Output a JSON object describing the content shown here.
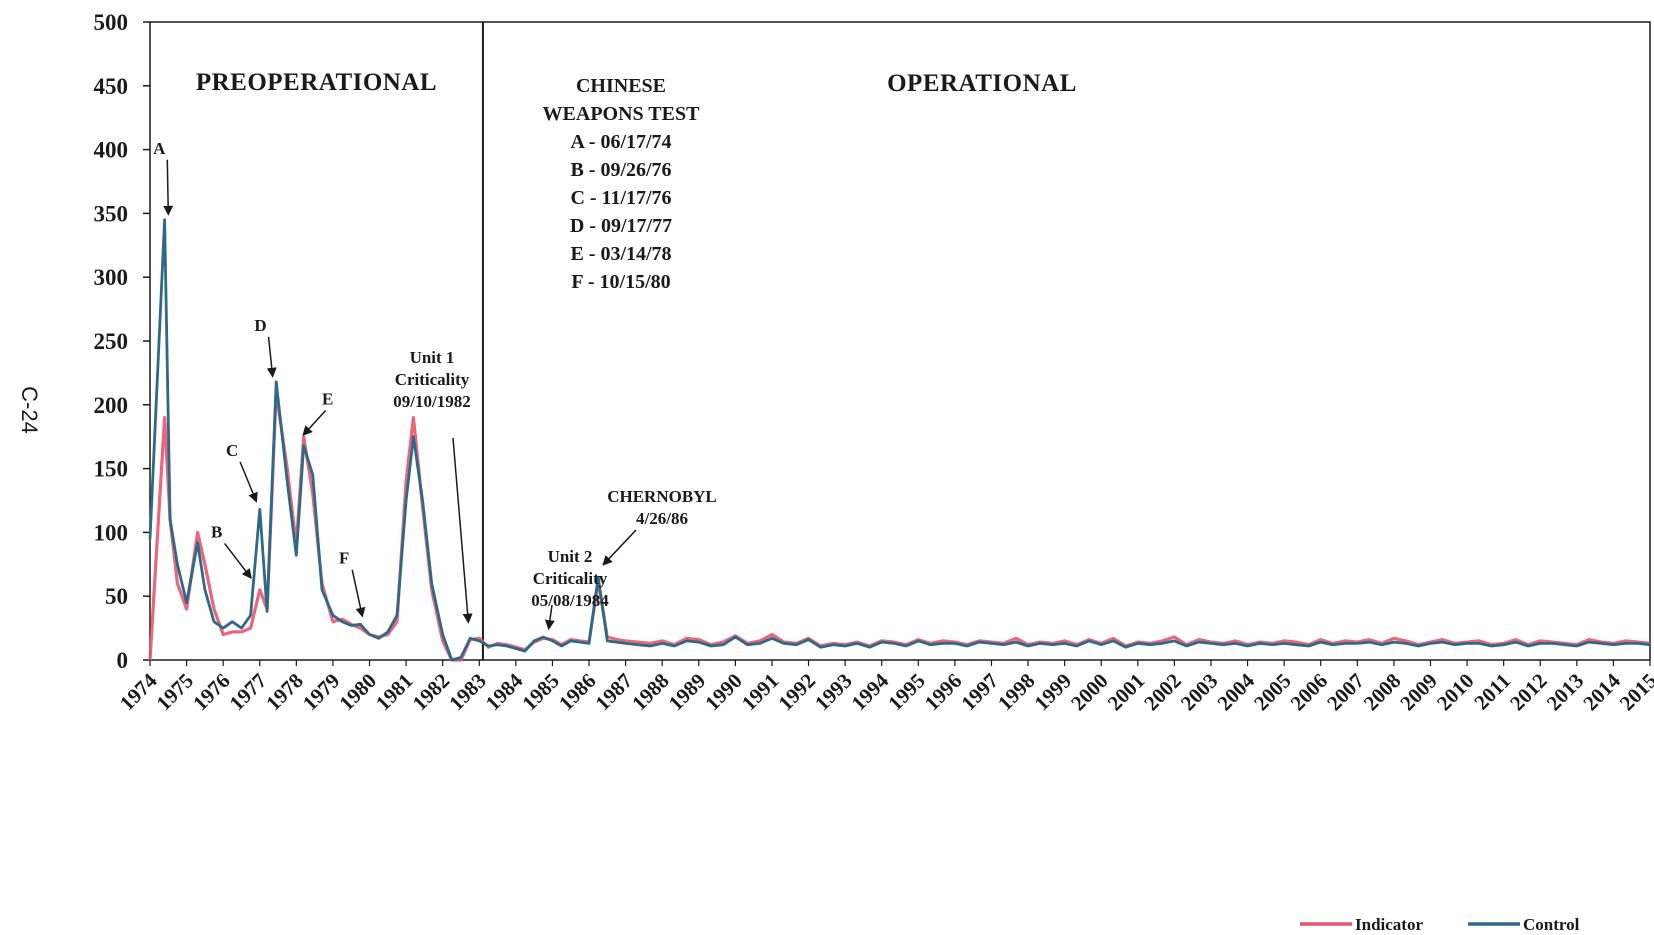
{
  "page_marker": "C-24",
  "chart_data": {
    "type": "line",
    "title": "",
    "xlabel": "",
    "ylabel": "",
    "ylim": [
      0,
      500
    ],
    "yticks": [
      0,
      50,
      100,
      150,
      200,
      250,
      300,
      350,
      400,
      450,
      500
    ],
    "xlim": [
      1974,
      2015
    ],
    "xticks": [
      "1974",
      "1975",
      "1976",
      "1977",
      "1978",
      "1979",
      "1980",
      "1981",
      "1982",
      "1983",
      "1984",
      "1985",
      "1986",
      "1987",
      "1988",
      "1989",
      "1990",
      "1991",
      "1992",
      "1993",
      "1994",
      "1995",
      "1996",
      "1997",
      "1998",
      "1999",
      "2000",
      "2001",
      "2002",
      "2003",
      "2004",
      "2005",
      "2006",
      "2007",
      "2008",
      "2009",
      "2010",
      "2011",
      "2012",
      "2013",
      "2014",
      "2015"
    ],
    "grid": false,
    "legend": "bottom-right",
    "periods": [
      {
        "label": "PREOPERATIONAL",
        "x_start": 1974,
        "x_end": 1983.1
      },
      {
        "label": "OPERATIONAL",
        "x_start": 1983.1,
        "x_end": 2015
      }
    ],
    "divider_x": 1983.1,
    "weapons_test": {
      "heading": [
        "CHINESE",
        "WEAPONS TEST"
      ],
      "items": [
        "A - 06/17/74",
        "B - 09/26/76",
        "C - 11/17/76",
        "D - 09/17/77",
        "E - 03/14/78",
        "F - 10/15/80"
      ]
    },
    "event_markers": [
      {
        "label": "A",
        "x": 1974.5,
        "y": 345
      },
      {
        "label": "B",
        "x": 1976.75,
        "y": 60
      },
      {
        "label": "C",
        "x": 1976.9,
        "y": 120
      },
      {
        "label": "D",
        "x": 1977.35,
        "y": 218
      },
      {
        "label": "E",
        "x": 1978.2,
        "y": 172
      },
      {
        "label": "F",
        "x": 1979.8,
        "y": 30
      }
    ],
    "events": [
      {
        "lines": [
          "Unit 1",
          "Criticality",
          "09/10/1982"
        ],
        "x": 1982.7,
        "y": 30
      },
      {
        "lines": [
          "Unit 2",
          "Criticality",
          "05/08/1984"
        ],
        "x": 1984.9,
        "y": 25
      },
      {
        "lines": [
          "CHERNOBYL",
          "4/26/86"
        ],
        "x": 1986.4,
        "y": 75
      }
    ],
    "series": [
      {
        "name": "Indicator",
        "color": "#e8556e",
        "x": [
          1974.0,
          1974.4,
          1974.55,
          1974.75,
          1975.0,
          1975.3,
          1975.5,
          1975.75,
          1976.0,
          1976.25,
          1976.5,
          1976.75,
          1977.0,
          1977.2,
          1977.45,
          1977.75,
          1978.0,
          1978.2,
          1978.45,
          1978.7,
          1979.0,
          1979.25,
          1979.5,
          1979.75,
          1980.0,
          1980.25,
          1980.5,
          1980.75,
          1981.0,
          1981.2,
          1981.45,
          1981.7,
          1982.0,
          1982.25,
          1982.5,
          1982.75,
          1983.0,
          1983.25,
          1983.5,
          1983.75,
          1984.0,
          1984.25,
          1984.5,
          1984.75,
          1985.0,
          1985.25,
          1985.5,
          1985.75,
          1986.0,
          1986.25,
          1986.5,
          1986.75,
          1987.0,
          1987.33,
          1987.67,
          1988.0,
          1988.33,
          1988.67,
          1989.0,
          1989.33,
          1989.67,
          1990.0,
          1990.33,
          1990.67,
          1991.0,
          1991.33,
          1991.67,
          1992.0,
          1992.33,
          1992.67,
          1993.0,
          1993.33,
          1993.67,
          1994.0,
          1994.33,
          1994.67,
          1995.0,
          1995.33,
          1995.67,
          1996.0,
          1996.33,
          1996.67,
          1997.0,
          1997.33,
          1997.67,
          1998.0,
          1998.33,
          1998.67,
          1999.0,
          1999.33,
          1999.67,
          2000.0,
          2000.33,
          2000.67,
          2001.0,
          2001.33,
          2001.67,
          2002.0,
          2002.33,
          2002.67,
          2003.0,
          2003.33,
          2003.67,
          2004.0,
          2004.33,
          2004.67,
          2005.0,
          2005.33,
          2005.67,
          2006.0,
          2006.33,
          2006.67,
          2007.0,
          2007.33,
          2007.67,
          2008.0,
          2008.33,
          2008.67,
          2009.0,
          2009.33,
          2009.67,
          2010.0,
          2010.33,
          2010.67,
          2011.0,
          2011.33,
          2011.67,
          2012.0,
          2012.33,
          2012.67,
          2013.0,
          2013.33,
          2013.67,
          2014.0,
          2014.33,
          2014.67,
          2015.0
        ],
        "y": [
          0,
          190,
          110,
          60,
          40,
          100,
          75,
          40,
          20,
          22,
          22,
          25,
          55,
          40,
          210,
          150,
          90,
          175,
          130,
          60,
          30,
          32,
          28,
          25,
          20,
          18,
          20,
          30,
          140,
          190,
          120,
          55,
          15,
          0,
          0,
          16,
          17,
          10,
          13,
          12,
          10,
          8,
          14,
          17,
          16,
          12,
          16,
          15,
          14,
          62,
          18,
          16,
          15,
          14,
          13,
          15,
          12,
          17,
          16,
          12,
          14,
          19,
          13,
          15,
          20,
          14,
          13,
          17,
          11,
          13,
          12,
          14,
          11,
          15,
          14,
          12,
          16,
          13,
          15,
          14,
          12,
          15,
          14,
          13,
          17,
          12,
          14,
          13,
          15,
          12,
          16,
          13,
          17,
          11,
          14,
          13,
          15,
          18,
          12,
          16,
          14,
          13,
          15,
          12,
          14,
          13,
          15,
          14,
          12,
          16,
          13,
          15,
          14,
          16,
          13,
          17,
          15,
          12,
          14,
          16,
          13,
          14,
          15,
          12,
          13,
          16,
          12,
          15,
          14,
          13,
          12,
          16,
          14,
          13,
          15,
          14,
          13
        ]
      },
      {
        "name": "Control",
        "color": "#2e6a86",
        "x": [
          1974.0,
          1974.4,
          1974.55,
          1974.75,
          1975.0,
          1975.3,
          1975.5,
          1975.75,
          1976.0,
          1976.25,
          1976.5,
          1976.75,
          1977.0,
          1977.2,
          1977.45,
          1977.75,
          1978.0,
          1978.2,
          1978.45,
          1978.7,
          1979.0,
          1979.25,
          1979.5,
          1979.75,
          1980.0,
          1980.25,
          1980.5,
          1980.75,
          1981.0,
          1981.2,
          1981.45,
          1981.7,
          1982.0,
          1982.25,
          1982.5,
          1982.75,
          1983.0,
          1983.25,
          1983.5,
          1983.75,
          1984.0,
          1984.25,
          1984.5,
          1984.75,
          1985.0,
          1985.25,
          1985.5,
          1985.75,
          1986.0,
          1986.25,
          1986.5,
          1986.75,
          1987.0,
          1987.33,
          1987.67,
          1988.0,
          1988.33,
          1988.67,
          1989.0,
          1989.33,
          1989.67,
          1990.0,
          1990.33,
          1990.67,
          1991.0,
          1991.33,
          1991.67,
          1992.0,
          1992.33,
          1992.67,
          1993.0,
          1993.33,
          1993.67,
          1994.0,
          1994.33,
          1994.67,
          1995.0,
          1995.33,
          1995.67,
          1996.0,
          1996.33,
          1996.67,
          1997.0,
          1997.33,
          1997.67,
          1998.0,
          1998.33,
          1998.67,
          1999.0,
          1999.33,
          1999.67,
          2000.0,
          2000.33,
          2000.67,
          2001.0,
          2001.33,
          2001.67,
          2002.0,
          2002.33,
          2002.67,
          2003.0,
          2003.33,
          2003.67,
          2004.0,
          2004.33,
          2004.67,
          2005.0,
          2005.33,
          2005.67,
          2006.0,
          2006.33,
          2006.67,
          2007.0,
          2007.33,
          2007.67,
          2008.0,
          2008.33,
          2008.67,
          2009.0,
          2009.33,
          2009.67,
          2010.0,
          2010.33,
          2010.67,
          2011.0,
          2011.33,
          2011.67,
          2012.0,
          2012.33,
          2012.67,
          2013.0,
          2013.33,
          2013.67,
          2014.0,
          2014.33,
          2014.67,
          2015.0
        ],
        "y": [
          95,
          345,
          110,
          75,
          45,
          92,
          55,
          30,
          25,
          30,
          25,
          35,
          118,
          38,
          218,
          140,
          82,
          168,
          145,
          55,
          35,
          30,
          27,
          28,
          20,
          17,
          22,
          35,
          125,
          175,
          125,
          60,
          20,
          0,
          2,
          17,
          15,
          11,
          12,
          11,
          9,
          7,
          15,
          18,
          15,
          11,
          15,
          14,
          13,
          65,
          15,
          14,
          13,
          12,
          11,
          13,
          11,
          15,
          14,
          11,
          12,
          18,
          12,
          13,
          17,
          13,
          12,
          16,
          10,
          12,
          11,
          13,
          10,
          14,
          13,
          11,
          15,
          12,
          13,
          13,
          11,
          14,
          13,
          12,
          14,
          11,
          13,
          12,
          13,
          11,
          15,
          12,
          15,
          10,
          13,
          12,
          13,
          15,
          11,
          14,
          13,
          12,
          13,
          11,
          13,
          12,
          13,
          12,
          11,
          14,
          12,
          13,
          13,
          14,
          12,
          14,
          13,
          11,
          13,
          14,
          12,
          13,
          13,
          11,
          12,
          14,
          11,
          13,
          13,
          12,
          11,
          14,
          13,
          12,
          13,
          13,
          12
        ]
      }
    ]
  }
}
